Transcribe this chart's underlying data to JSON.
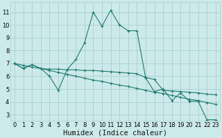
{
  "background_color": "#cdeaea",
  "grid_color": "#aacece",
  "line_color": "#1a7a6e",
  "xlabel": "Humidex (Indice chaleur)",
  "xlim": [
    -0.5,
    23.5
  ],
  "ylim": [
    2.5,
    11.8
  ],
  "xticks": [
    0,
    1,
    2,
    3,
    4,
    5,
    6,
    7,
    8,
    9,
    10,
    11,
    12,
    13,
    14,
    15,
    16,
    17,
    18,
    19,
    20,
    21,
    22,
    23
  ],
  "yticks": [
    3,
    4,
    5,
    6,
    7,
    8,
    9,
    10,
    11
  ],
  "series1_x": [
    0,
    1,
    2,
    3,
    4,
    5,
    6,
    7,
    8,
    9,
    10,
    11,
    12,
    13,
    14,
    15,
    16,
    17,
    18,
    19,
    20,
    21,
    22,
    23
  ],
  "series1_y": [
    7.0,
    6.6,
    6.9,
    6.6,
    6.0,
    4.9,
    6.5,
    7.3,
    8.6,
    11.0,
    9.9,
    11.15,
    10.0,
    9.55,
    9.55,
    5.85,
    4.8,
    5.0,
    4.1,
    4.7,
    4.05,
    4.05,
    2.6,
    2.6
  ],
  "series2_x": [
    0,
    1,
    2,
    3,
    4,
    5,
    6,
    7,
    8,
    9,
    10,
    11,
    12,
    13,
    14,
    15,
    16,
    17,
    18,
    19,
    20,
    21,
    22,
    23
  ],
  "series2_y": [
    7.0,
    6.6,
    6.9,
    6.6,
    6.55,
    6.55,
    6.5,
    6.5,
    6.45,
    6.45,
    6.4,
    6.35,
    6.3,
    6.25,
    6.2,
    5.9,
    5.75,
    4.9,
    4.85,
    4.8,
    4.75,
    4.7,
    4.6,
    4.55
  ],
  "series3_x": [
    0,
    1,
    2,
    3,
    4,
    5,
    6,
    7,
    8,
    9,
    10,
    11,
    12,
    13,
    14,
    15,
    16,
    17,
    18,
    19,
    20,
    21,
    22,
    23
  ],
  "series3_y": [
    7.0,
    6.85,
    6.7,
    6.6,
    6.45,
    6.3,
    6.15,
    6.0,
    5.85,
    5.7,
    5.6,
    5.45,
    5.3,
    5.2,
    5.05,
    4.9,
    4.75,
    4.65,
    4.5,
    4.35,
    4.2,
    4.1,
    3.95,
    3.8
  ],
  "fontsize_tick": 6,
  "fontsize_label": 7.5
}
